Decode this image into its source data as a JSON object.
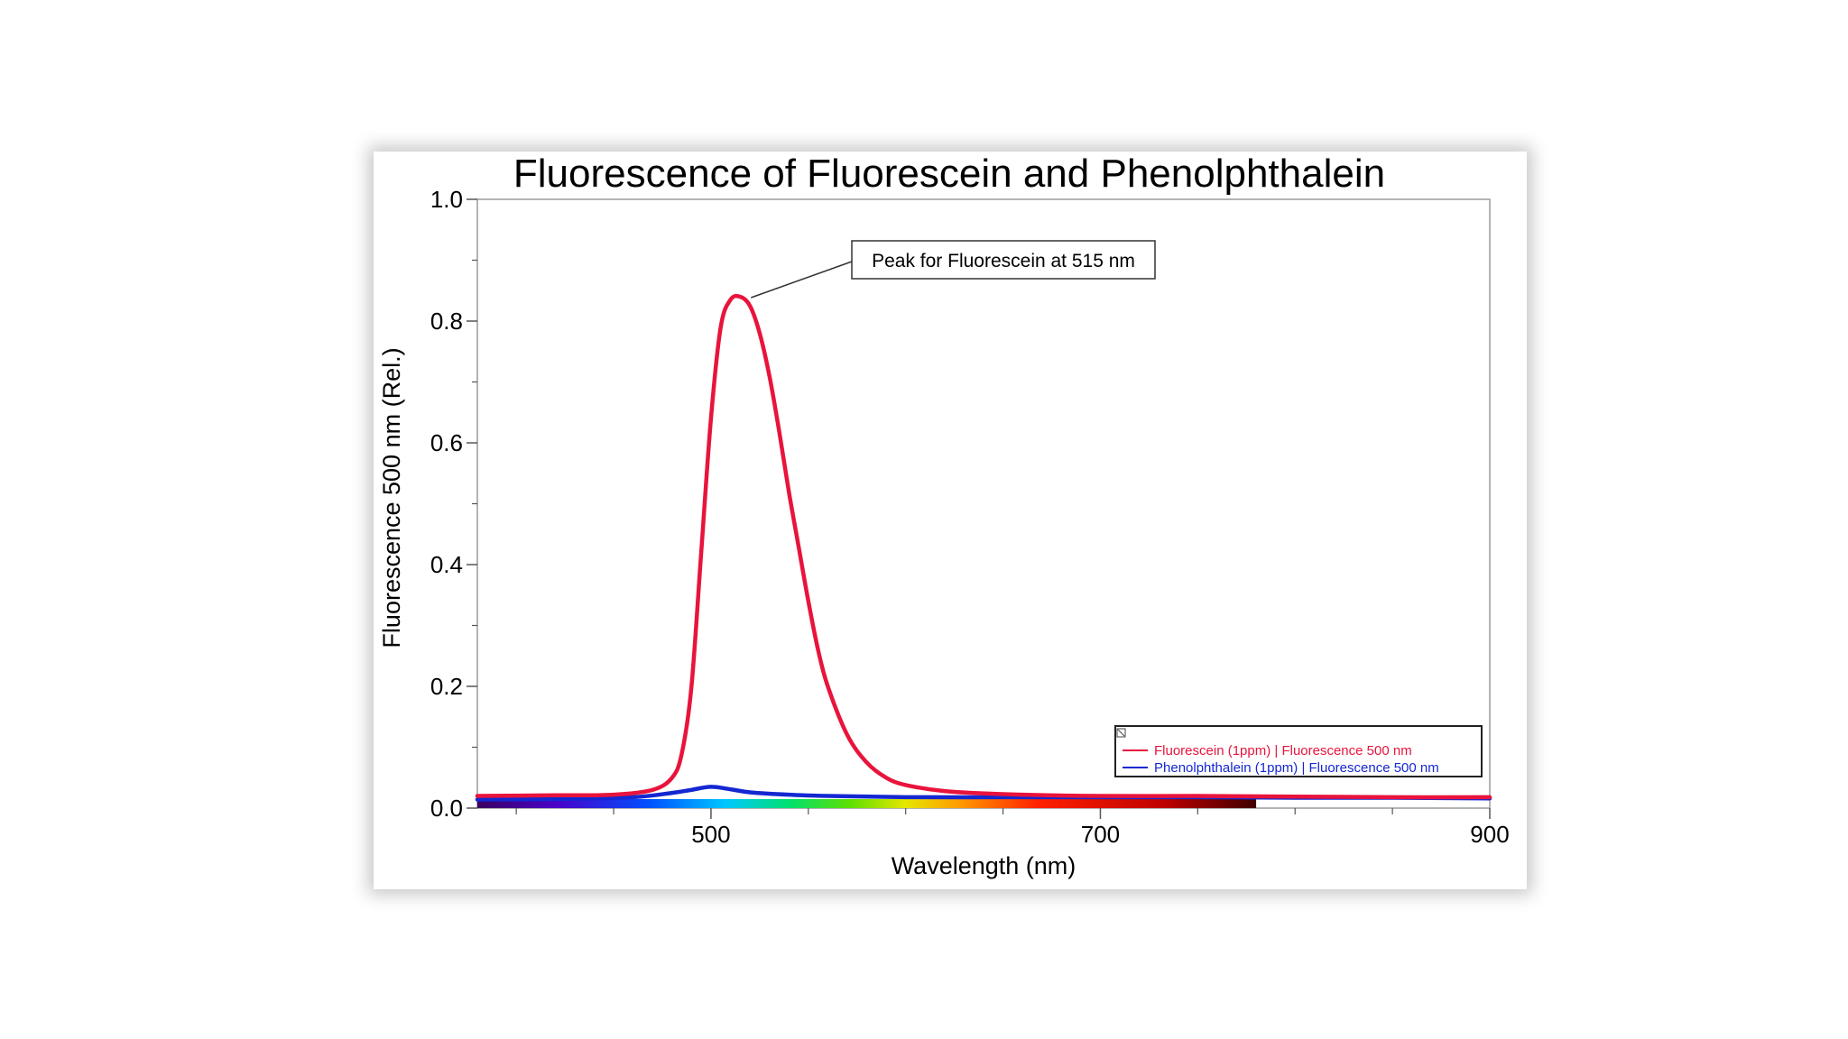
{
  "chart_data": {
    "type": "line",
    "title": "Fluorescence of Fluorescein and Phenolphthalein",
    "xlabel": "Wavelength (nm)",
    "ylabel": "Fluorescence 500 nm (Rel.)",
    "xlim": [
      380,
      900
    ],
    "ylim": [
      0,
      1.0
    ],
    "x_ticks": [
      "500",
      "700",
      "900"
    ],
    "x_tick_values": [
      500,
      700,
      900
    ],
    "y_ticks": [
      "0.0",
      "0.2",
      "0.4",
      "0.6",
      "0.8",
      "1.0"
    ],
    "y_tick_values": [
      0,
      0.2,
      0.4,
      0.6,
      0.8,
      1.0
    ],
    "grid": false,
    "legend_position": "bottom-right",
    "annotation": {
      "text": "Peak for Fluorescein at 515 nm",
      "x": 515,
      "y": 0.84
    },
    "spectrum_band": [
      380,
      780
    ],
    "series": [
      {
        "name": "Fluorescein (1ppm) | Fluorescence 500 nm",
        "color": "#e8143c",
        "x": [
          380,
          420,
          450,
          470,
          480,
          485,
          490,
          495,
          500,
          505,
          510,
          515,
          520,
          525,
          530,
          535,
          540,
          545,
          550,
          555,
          560,
          570,
          580,
          590,
          600,
          620,
          650,
          700,
          750,
          800,
          850,
          900
        ],
        "y": [
          0.02,
          0.021,
          0.022,
          0.03,
          0.05,
          0.09,
          0.2,
          0.42,
          0.64,
          0.79,
          0.835,
          0.84,
          0.825,
          0.78,
          0.71,
          0.62,
          0.52,
          0.43,
          0.34,
          0.26,
          0.2,
          0.12,
          0.075,
          0.05,
          0.038,
          0.028,
          0.023,
          0.02,
          0.02,
          0.019,
          0.018,
          0.018
        ]
      },
      {
        "name": "Phenolphthalein (1ppm) | Fluorescence 500 nm",
        "color": "#1428d2",
        "x": [
          380,
          420,
          460,
          480,
          490,
          500,
          510,
          520,
          540,
          560,
          600,
          650,
          700,
          750,
          800,
          850,
          900
        ],
        "y": [
          0.014,
          0.015,
          0.018,
          0.025,
          0.03,
          0.035,
          0.031,
          0.026,
          0.022,
          0.02,
          0.018,
          0.018,
          0.018,
          0.018,
          0.017,
          0.017,
          0.016
        ]
      }
    ]
  }
}
